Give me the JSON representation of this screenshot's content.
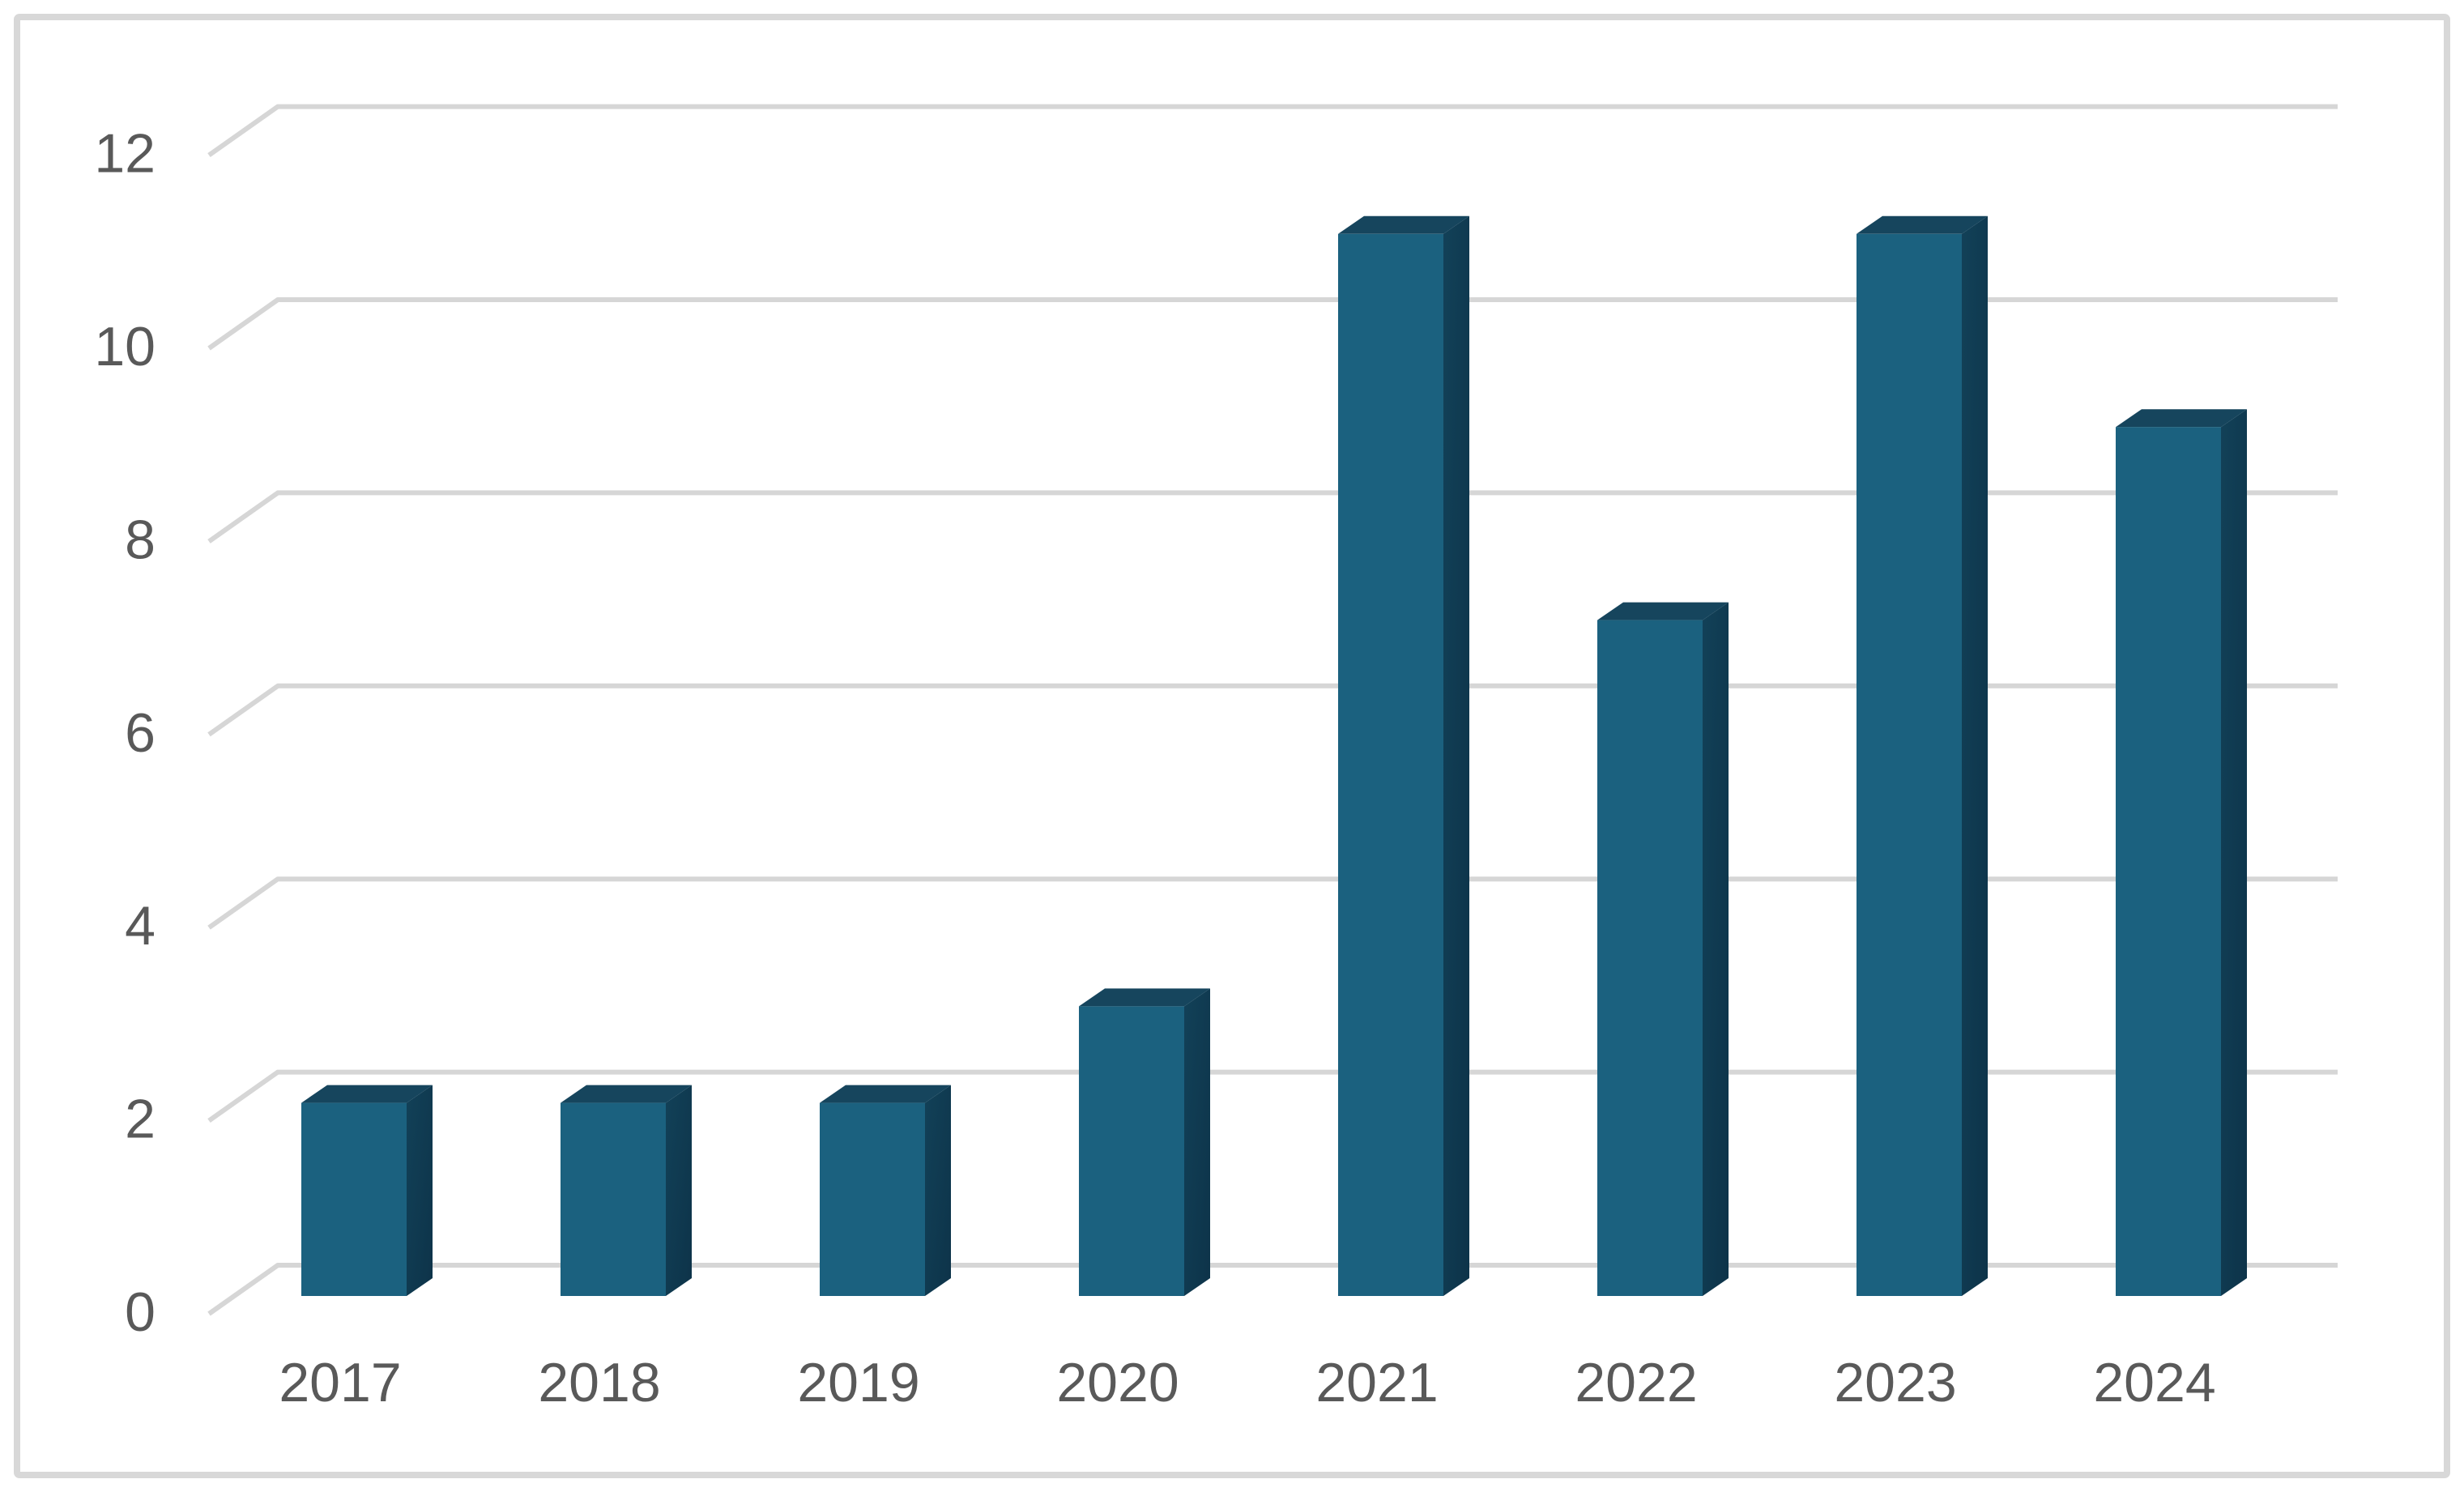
{
  "chart_data": {
    "type": "bar",
    "style": "3d-column",
    "title": "",
    "xlabel": "",
    "ylabel": "",
    "categories": [
      "2017",
      "2018",
      "2019",
      "2020",
      "2021",
      "2022",
      "2023",
      "2024"
    ],
    "values": [
      2,
      2,
      2,
      3,
      11,
      7,
      11,
      9
    ],
    "ylim": [
      0,
      12
    ],
    "ytick_step": 2,
    "ytick_labels": [
      "0",
      "2",
      "4",
      "6",
      "8",
      "10",
      "12"
    ],
    "grid": true,
    "legend": "none",
    "colors": {
      "bar_front": "#1B617F",
      "bar_top": "#16455D",
      "bar_side_light": "#124158",
      "bar_side_dark": "#0D3349",
      "gridline": "#D6D6D6",
      "axis_label": "#595959",
      "frame_border": "#D8D8D8",
      "background": "#FFFFFF"
    }
  }
}
